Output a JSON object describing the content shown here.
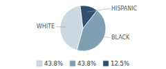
{
  "chart_data": {
    "type": "pie",
    "categories": [
      "WHITE",
      "BLACK",
      "HISPANIC"
    ],
    "values": [
      43.8,
      43.8,
      12.5
    ],
    "value_labels": [
      "43.8%",
      "43.8%",
      "12.5%"
    ],
    "colors": [
      "#ccd8e0",
      "#7fa0b3",
      "#2e5070"
    ],
    "legend": "bottom"
  }
}
